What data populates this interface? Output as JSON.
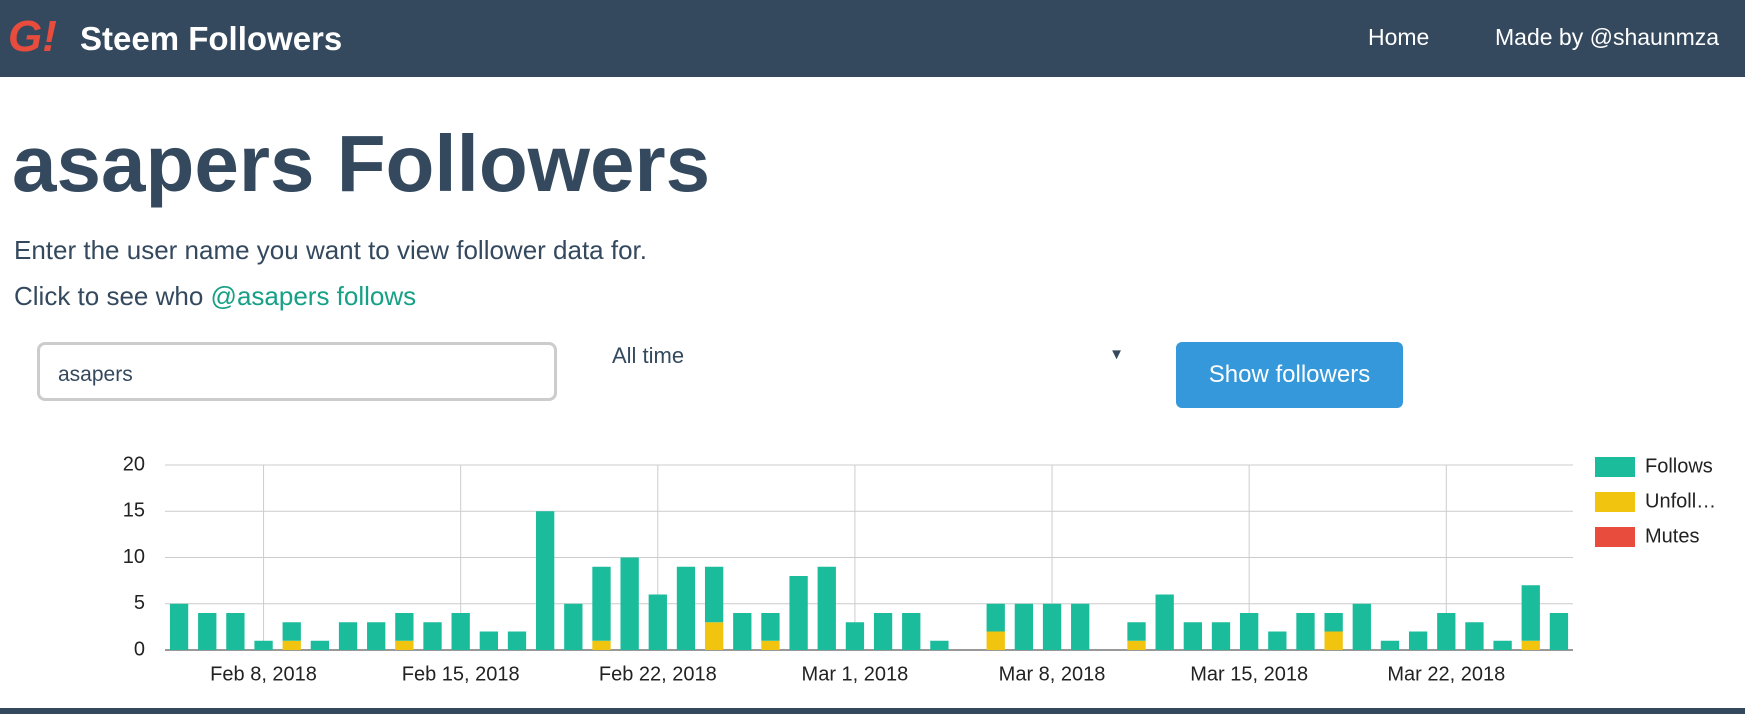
{
  "nav": {
    "logo": "G!",
    "brand": "Steem Followers",
    "links": [
      "Home",
      "Made by @shaunmza"
    ]
  },
  "heading": "asapers Followers",
  "intro": "Enter the user name you want to view follower data for.",
  "follows_prompt": "Click to see who",
  "follows_link": "@asapers follows",
  "form": {
    "username": "asapers",
    "period": "All time",
    "button": "Show followers"
  },
  "chart_data": {
    "type": "stacked-bar",
    "x": [
      "2018-02-05",
      "2018-02-06",
      "2018-02-07",
      "2018-02-08",
      "2018-02-09",
      "2018-02-10",
      "2018-02-11",
      "2018-02-12",
      "2018-02-13",
      "2018-02-14",
      "2018-02-15",
      "2018-02-16",
      "2018-02-17",
      "2018-02-18",
      "2018-02-19",
      "2018-02-20",
      "2018-02-21",
      "2018-02-22",
      "2018-02-23",
      "2018-02-24",
      "2018-02-25",
      "2018-02-26",
      "2018-02-27",
      "2018-02-28",
      "2018-03-01",
      "2018-03-02",
      "2018-03-03",
      "2018-03-04",
      "2018-03-05",
      "2018-03-06",
      "2018-03-07",
      "2018-03-08",
      "2018-03-09",
      "2018-03-10",
      "2018-03-11",
      "2018-03-12",
      "2018-03-13",
      "2018-03-14",
      "2018-03-15",
      "2018-03-16",
      "2018-03-17",
      "2018-03-18",
      "2018-03-19",
      "2018-03-20",
      "2018-03-21",
      "2018-03-22",
      "2018-03-23",
      "2018-03-24",
      "2018-03-25",
      "2018-03-26"
    ],
    "series": [
      {
        "name": "Follows",
        "color": "#1abc9c",
        "values": [
          5,
          4,
          4,
          1,
          2,
          1,
          3,
          3,
          3,
          3,
          4,
          2,
          2,
          15,
          5,
          8,
          10,
          6,
          9,
          6,
          4,
          3,
          8,
          9,
          3,
          4,
          4,
          1,
          0,
          3,
          5,
          5,
          5,
          0,
          2,
          6,
          3,
          3,
          4,
          2,
          4,
          2,
          5,
          1,
          2,
          4,
          3,
          1,
          6,
          4
        ]
      },
      {
        "name": "Unfoll…",
        "color": "#f1c40f",
        "values": [
          0,
          0,
          0,
          0,
          1,
          0,
          0,
          0,
          1,
          0,
          0,
          0,
          0,
          0,
          0,
          1,
          0,
          0,
          0,
          3,
          0,
          1,
          0,
          0,
          0,
          0,
          0,
          0,
          0,
          2,
          0,
          0,
          0,
          0,
          1,
          0,
          0,
          0,
          0,
          0,
          0,
          2,
          0,
          0,
          0,
          0,
          0,
          0,
          1,
          0
        ]
      },
      {
        "name": "Mutes",
        "color": "#e74c3c",
        "values": [
          0,
          0,
          0,
          0,
          0,
          0,
          0,
          0,
          0,
          0,
          0,
          0,
          0,
          0,
          0,
          0,
          0,
          0,
          0,
          0,
          0,
          0,
          0,
          0,
          0,
          0,
          0,
          0,
          0,
          0,
          0,
          0,
          0,
          0,
          0,
          0,
          0,
          0,
          0,
          0,
          0,
          0,
          0,
          0,
          0,
          0,
          0,
          0,
          0,
          0
        ]
      }
    ],
    "ylim": [
      0,
      20
    ],
    "yticks": [
      0,
      5,
      10,
      15,
      20
    ],
    "xticks": [
      {
        "value": "2018-02-08",
        "label": "Feb 8, 2018"
      },
      {
        "value": "2018-02-15",
        "label": "Feb 15, 2018"
      },
      {
        "value": "2018-02-22",
        "label": "Feb 22, 2018"
      },
      {
        "value": "2018-03-01",
        "label": "Mar 1, 2018"
      },
      {
        "value": "2018-03-08",
        "label": "Mar 8, 2018"
      },
      {
        "value": "2018-03-15",
        "label": "Mar 15, 2018"
      },
      {
        "value": "2018-03-22",
        "label": "Mar 22, 2018"
      }
    ],
    "grid": true,
    "legend": "right"
  }
}
